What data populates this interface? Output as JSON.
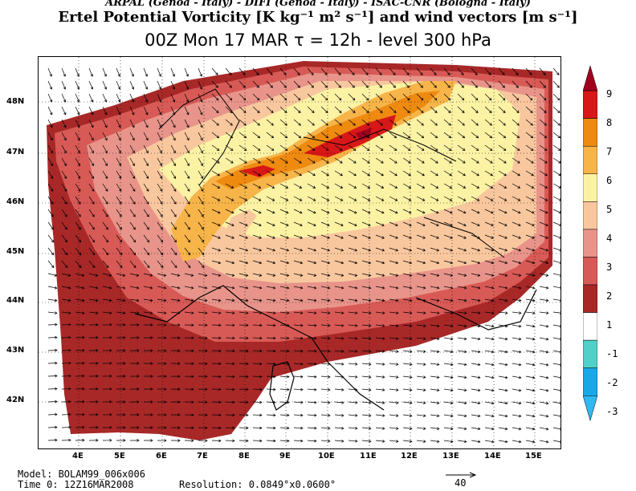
{
  "header": {
    "credits": "ARPAL (Genoa - Italy)  -  DIFI (Genoa - Italy)  -  ISAC-CNR (Bologna - Italy)",
    "title": "Ertel Potential Vorticity [K kg⁻¹ m² s⁻¹] and wind vectors [m s⁻¹]",
    "subtitle": "00Z Mon 17 MAR   τ = 12h   -   level 300 hPa"
  },
  "axes": {
    "lat_labels": [
      "48N",
      "47N",
      "46N",
      "45N",
      "44N",
      "43N",
      "42N"
    ],
    "lon_labels": [
      "4E",
      "5E",
      "6E",
      "7E",
      "8E",
      "9E",
      "10E",
      "11E",
      "12E",
      "13E",
      "14E",
      "15E"
    ]
  },
  "colorbar": {
    "labels": [
      "9",
      "8",
      "7",
      "6",
      "5",
      "4",
      "3",
      "2",
      "1",
      "-1",
      "-2",
      "-3"
    ],
    "colors": [
      "#a0001e",
      "#d81818",
      "#ee8a10",
      "#f7b448",
      "#fbf2a4",
      "#f9c79e",
      "#e8948a",
      "#d85a56",
      "#a82828",
      "#ffffff",
      "#50d0c8",
      "#18a8e8",
      "#30b8f0"
    ]
  },
  "footer": {
    "model": "Model: BOLAM99_006x006",
    "time": "Time 0: 12Z16MAR2008",
    "resolution": "Resolution: 0.0849°x0.0600°",
    "scale_label": "40"
  }
}
